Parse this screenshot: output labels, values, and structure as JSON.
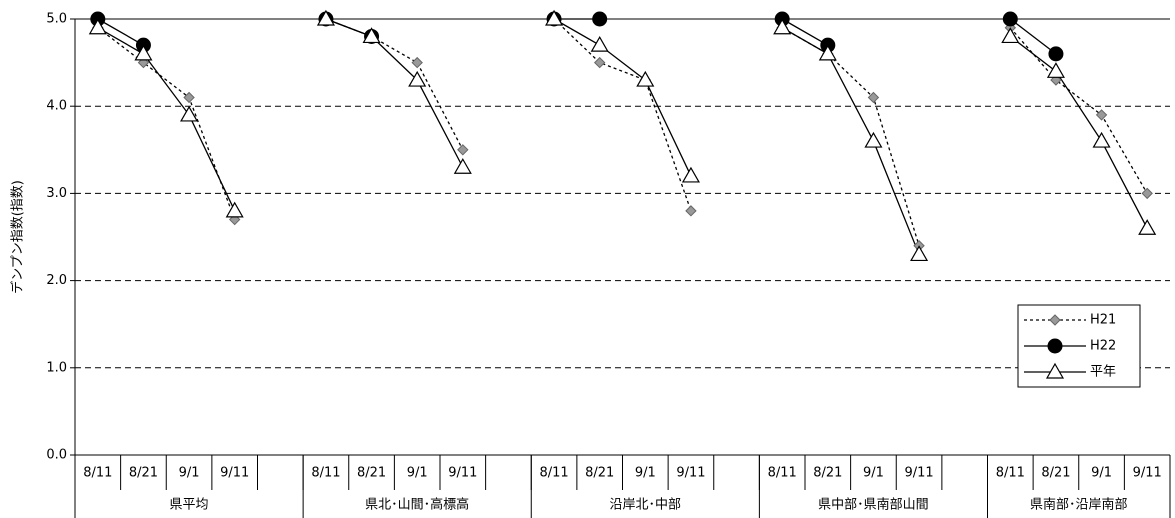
{
  "chart_data": {
    "type": "line",
    "y_label": "デンプン指数(指数)",
    "categories": [
      "8/11",
      "8/21",
      "9/1",
      "9/11",
      null,
      "8/11",
      "8/21",
      "9/1",
      "9/11",
      null,
      "8/11",
      "8/21",
      "9/1",
      "9/11",
      null,
      "8/11",
      "8/21",
      "9/1",
      "9/11",
      null,
      "8/11",
      "8/21",
      "9/1",
      "9/11"
    ],
    "groups": [
      "県平均",
      "県北･山間･高標高",
      "沿岸北･中部",
      "県中部･県南部山間",
      "県南部･沿岸南部"
    ],
    "series": [
      {
        "name": "H21",
        "color": "#999999",
        "marker": "diamond",
        "line_style": "dotted",
        "values": [
          4.9,
          4.5,
          4.1,
          2.7,
          null,
          5.0,
          4.8,
          4.5,
          3.5,
          null,
          5.0,
          4.5,
          4.3,
          2.8,
          null,
          4.9,
          4.6,
          4.1,
          2.4,
          null,
          4.9,
          4.3,
          3.9,
          3.0
        ]
      },
      {
        "name": "H22",
        "color": "#000000",
        "marker": "circle",
        "line_style": "solid",
        "values": [
          5.0,
          4.7,
          null,
          null,
          null,
          5.0,
          4.8,
          null,
          null,
          null,
          5.0,
          5.0,
          null,
          null,
          null,
          5.0,
          4.7,
          null,
          null,
          null,
          5.0,
          4.6,
          null,
          null
        ]
      },
      {
        "name": "平年",
        "color": "#ffffff",
        "marker": "triangle",
        "line_style": "solid",
        "values": [
          4.9,
          4.6,
          3.9,
          2.8,
          null,
          5.0,
          4.8,
          4.3,
          3.3,
          null,
          5.0,
          4.7,
          4.3,
          3.2,
          null,
          4.9,
          4.6,
          3.6,
          2.3,
          null,
          4.8,
          4.4,
          3.6,
          2.6
        ]
      }
    ],
    "ylim": [
      0,
      5
    ],
    "yticks": [
      {
        "value": 0,
        "label": "0.0"
      },
      {
        "value": 1,
        "label": "1.0"
      },
      {
        "value": 2,
        "label": "2.0"
      },
      {
        "value": 3,
        "label": "3.0"
      },
      {
        "value": 4,
        "label": "4.0"
      },
      {
        "value": 5,
        "label": "5.0"
      }
    ],
    "grid": true,
    "legend": "bottom-right"
  }
}
